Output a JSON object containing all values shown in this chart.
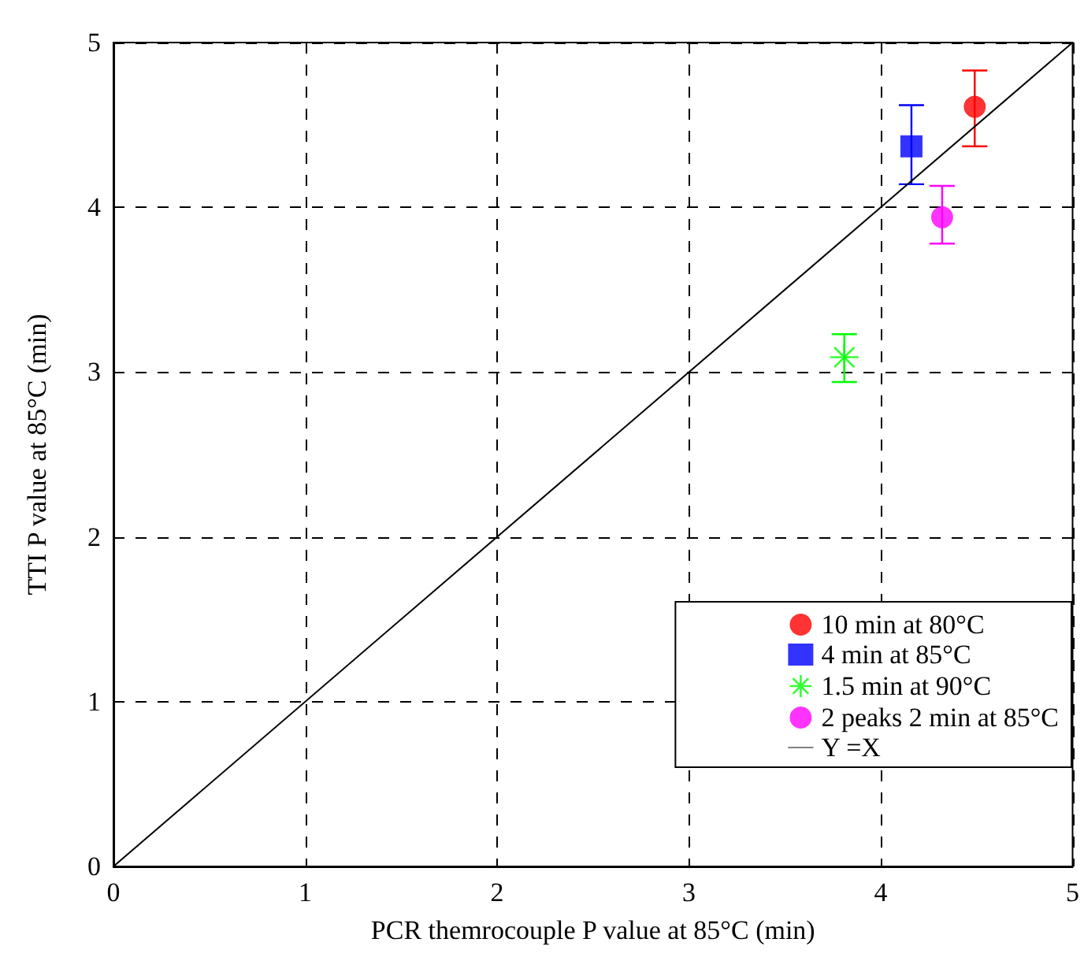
{
  "chart_data": {
    "type": "scatter",
    "xlabel": "PCR themrocouple P value at 85°C (min)",
    "ylabel": "TTI P value at 85°C (min)",
    "xlim": [
      0,
      5
    ],
    "ylim": [
      0,
      5
    ],
    "xticks": [
      0,
      1,
      2,
      3,
      4,
      5
    ],
    "yticks": [
      0,
      1,
      2,
      3,
      4,
      5
    ],
    "grid": true,
    "legend": "bottom right",
    "series": [
      {
        "name": "10 min at 80°C",
        "color": "#ff0000",
        "marker": "circle",
        "x": [
          4.49
        ],
        "values": [
          4.61
        ],
        "errors": [
          [
            4.37,
            4.83
          ]
        ]
      },
      {
        "name": "4 min at 85°C",
        "color": "#0000ff",
        "marker": "square",
        "x": [
          4.16
        ],
        "values": [
          4.37
        ],
        "errors": [
          [
            4.14,
            4.62
          ]
        ]
      },
      {
        "name": "1.5 min at 90°C",
        "color": "#00ff00",
        "marker": "cross",
        "x": [
          3.81
        ],
        "values": [
          3.09
        ],
        "errors": [
          [
            2.94,
            3.23
          ]
        ]
      },
      {
        "name": "2 peaks 2 min at 85°C",
        "color": "#ff00ff",
        "marker": "circle",
        "x": [
          4.32
        ],
        "values": [
          3.94
        ],
        "errors": [
          [
            3.78,
            4.13
          ]
        ]
      },
      {
        "name": "Y =X",
        "type": "line",
        "color": "#000000",
        "marker": "none",
        "line_style": "solid",
        "x": [
          0,
          5
        ],
        "values": [
          0,
          5
        ]
      }
    ]
  }
}
